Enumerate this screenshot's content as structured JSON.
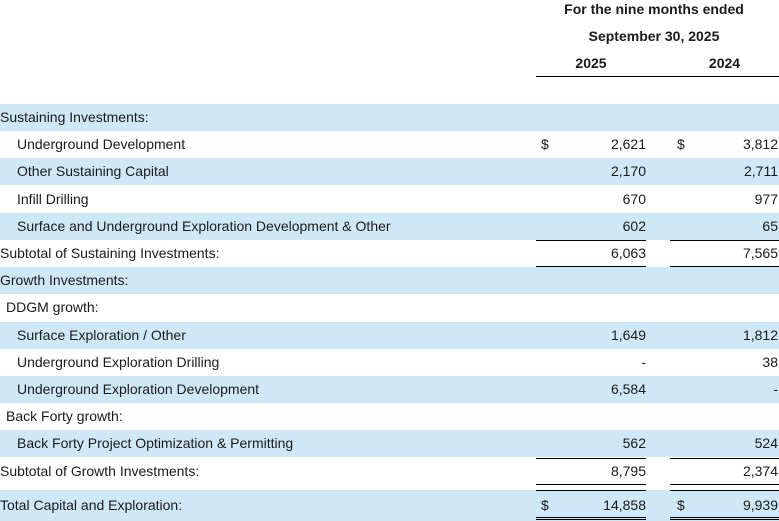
{
  "header": {
    "period_line1": "For the nine months ended",
    "period_line2": "September 30, 2025",
    "col1_year": "2025",
    "col2_year": "2024"
  },
  "rows": [
    {
      "label": "Sustaining Investments:",
      "indent": 0,
      "blue": true,
      "dollar1": "",
      "v1": "",
      "dollar2": "",
      "v2": ""
    },
    {
      "label": "Underground Development",
      "indent": 2,
      "blue": false,
      "dollar1": "$",
      "v1": "2,621",
      "dollar2": "$",
      "v2": "3,812"
    },
    {
      "label": "Other Sustaining Capital",
      "indent": 2,
      "blue": true,
      "dollar1": "",
      "v1": "2,170",
      "dollar2": "",
      "v2": "2,711"
    },
    {
      "label": "Infill Drilling",
      "indent": 2,
      "blue": false,
      "dollar1": "",
      "v1": "670",
      "dollar2": "",
      "v2": "977"
    },
    {
      "label": "Surface and Underground Exploration Development & Other",
      "indent": 2,
      "blue": true,
      "dollar1": "",
      "v1": "602",
      "dollar2": "",
      "v2": "65"
    },
    {
      "label": "Subtotal of Sustaining Investments:",
      "indent": 0,
      "blue": false,
      "dollar1": "",
      "v1": "6,063",
      "dollar2": "",
      "v2": "7,565",
      "subtotal": true
    },
    {
      "label": "Growth Investments:",
      "indent": 0,
      "blue": true,
      "dollar1": "",
      "v1": "",
      "dollar2": "",
      "v2": ""
    },
    {
      "label": "DDGM growth:",
      "indent": 1,
      "blue": false,
      "dollar1": "",
      "v1": "",
      "dollar2": "",
      "v2": ""
    },
    {
      "label": "Surface Exploration / Other",
      "indent": 2,
      "blue": true,
      "dollar1": "",
      "v1": "1,649",
      "dollar2": "",
      "v2": "1,812"
    },
    {
      "label": "Underground Exploration Drilling",
      "indent": 2,
      "blue": false,
      "dollar1": "",
      "v1": "-",
      "dollar2": "",
      "v2": "38"
    },
    {
      "label": "Underground Exploration Development",
      "indent": 2,
      "blue": true,
      "dollar1": "",
      "v1": "6,584",
      "dollar2": "",
      "v2": "-"
    },
    {
      "label": "Back Forty growth:",
      "indent": 1,
      "blue": false,
      "dollar1": "",
      "v1": "",
      "dollar2": "",
      "v2": ""
    },
    {
      "label": "Back Forty Project Optimization & Permitting",
      "indent": 2,
      "blue": true,
      "dollar1": "",
      "v1": "562",
      "dollar2": "",
      "v2": "524"
    },
    {
      "label": "Subtotal of Growth Investments:",
      "indent": 0,
      "blue": false,
      "dollar1": "",
      "v1": "8,795",
      "dollar2": "",
      "v2": "2,374",
      "subtotal": true
    },
    {
      "label": "Total Capital and Exploration:",
      "indent": 0,
      "blue": true,
      "dollar1": "$",
      "v1": "14,858",
      "dollar2": "$",
      "v2": "9,939",
      "total": true
    }
  ]
}
